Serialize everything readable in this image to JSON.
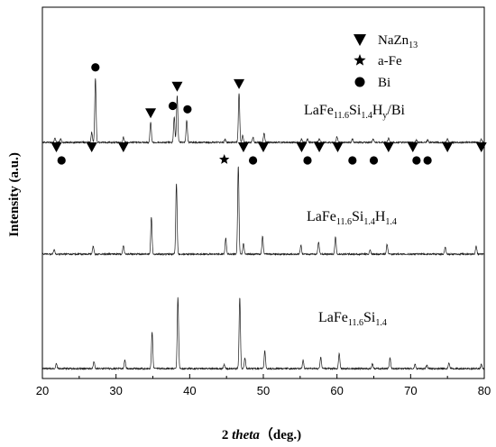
{
  "chart_data": {
    "type": "line",
    "xlabel_pre": "2 ",
    "xlabel_italic": "theta",
    "xlabel_post": "（deg.)",
    "ylabel": "Intensity (a.u.)",
    "xlim": [
      20,
      80
    ],
    "x_ticks": [
      20,
      30,
      40,
      50,
      60,
      70,
      80
    ],
    "grid": false,
    "legend": {
      "placement": "top-right",
      "entries": [
        {
          "marker": "triangle-down",
          "main": "NaZn",
          "sub": "13"
        },
        {
          "marker": "star",
          "main": "a-Fe",
          "sub": ""
        },
        {
          "marker": "circle",
          "main": "Bi",
          "sub": ""
        }
      ]
    },
    "series": [
      {
        "label_parts": [
          [
            "LaFe",
            ""
          ],
          [
            "11.6",
            "sub"
          ],
          [
            "Si",
            ""
          ],
          [
            "1.4",
            "sub"
          ]
        ],
        "peaks": [
          {
            "x": 21.9,
            "h": 0.07
          },
          {
            "x": 27.0,
            "h": 0.1
          },
          {
            "x": 31.2,
            "h": 0.12
          },
          {
            "x": 34.9,
            "h": 0.52
          },
          {
            "x": 38.4,
            "h": 1.0
          },
          {
            "x": 44.7,
            "h": 0.06
          },
          {
            "x": 46.8,
            "h": 1.0
          },
          {
            "x": 47.5,
            "h": 0.15
          },
          {
            "x": 50.2,
            "h": 0.25
          },
          {
            "x": 55.4,
            "h": 0.12
          },
          {
            "x": 57.8,
            "h": 0.16
          },
          {
            "x": 60.3,
            "h": 0.21
          },
          {
            "x": 64.8,
            "h": 0.07
          },
          {
            "x": 67.2,
            "h": 0.15
          },
          {
            "x": 70.6,
            "h": 0.06
          },
          {
            "x": 72.2,
            "h": 0.05
          },
          {
            "x": 75.2,
            "h": 0.08
          },
          {
            "x": 79.6,
            "h": 0.06
          }
        ]
      },
      {
        "label_parts": [
          [
            "LaFe",
            ""
          ],
          [
            "11.6",
            "sub"
          ],
          [
            "Si",
            ""
          ],
          [
            "1.4",
            "sub"
          ],
          [
            "H",
            ""
          ],
          [
            "1.4",
            "sub"
          ]
        ],
        "peaks": [
          {
            "x": 21.6,
            "h": 0.05
          },
          {
            "x": 26.9,
            "h": 0.09
          },
          {
            "x": 31.0,
            "h": 0.1
          },
          {
            "x": 34.8,
            "h": 0.42
          },
          {
            "x": 38.2,
            "h": 0.8
          },
          {
            "x": 44.9,
            "h": 0.18
          },
          {
            "x": 46.6,
            "h": 1.0
          },
          {
            "x": 47.3,
            "h": 0.12
          },
          {
            "x": 49.9,
            "h": 0.2
          },
          {
            "x": 55.1,
            "h": 0.1
          },
          {
            "x": 57.5,
            "h": 0.14
          },
          {
            "x": 59.8,
            "h": 0.2
          },
          {
            "x": 64.5,
            "h": 0.05
          },
          {
            "x": 66.8,
            "h": 0.11
          },
          {
            "x": 74.7,
            "h": 0.08
          },
          {
            "x": 78.9,
            "h": 0.09
          }
        ]
      },
      {
        "label_parts": [
          [
            "LaFe",
            ""
          ],
          [
            "11.6",
            "sub"
          ],
          [
            "Si",
            ""
          ],
          [
            "1.4",
            "sub"
          ],
          [
            "H",
            ""
          ],
          [
            "y",
            "sub"
          ],
          [
            "/Bi",
            ""
          ]
        ],
        "peaks": [
          {
            "x": 21.7,
            "h": 0.05
          },
          {
            "x": 22.5,
            "h": 0.04
          },
          {
            "x": 26.7,
            "h": 0.12
          },
          {
            "x": 27.2,
            "h": 0.75
          },
          {
            "x": 31.0,
            "h": 0.06
          },
          {
            "x": 34.7,
            "h": 0.24
          },
          {
            "x": 37.9,
            "h": 0.3
          },
          {
            "x": 38.3,
            "h": 0.55
          },
          {
            "x": 39.6,
            "h": 0.26
          },
          {
            "x": 44.8,
            "h": 0.04
          },
          {
            "x": 46.7,
            "h": 0.58
          },
          {
            "x": 47.2,
            "h": 0.08
          },
          {
            "x": 48.6,
            "h": 0.06
          },
          {
            "x": 50.1,
            "h": 0.11
          },
          {
            "x": 55.2,
            "h": 0.04
          },
          {
            "x": 56.0,
            "h": 0.04
          },
          {
            "x": 57.6,
            "h": 0.04
          },
          {
            "x": 60.0,
            "h": 0.07
          },
          {
            "x": 62.1,
            "h": 0.04
          },
          {
            "x": 64.9,
            "h": 0.04
          },
          {
            "x": 67.0,
            "h": 0.05
          },
          {
            "x": 70.8,
            "h": 0.03
          },
          {
            "x": 72.3,
            "h": 0.03
          },
          {
            "x": 75.0,
            "h": 0.04
          },
          {
            "x": 79.6,
            "h": 0.04
          }
        ],
        "markers": [
          {
            "type": "triangle-down",
            "x": 21.9
          },
          {
            "type": "triangle-down",
            "x": 26.7
          },
          {
            "type": "triangle-down",
            "x": 31.0
          },
          {
            "type": "triangle-down",
            "x": 34.7
          },
          {
            "type": "triangle-down",
            "x": 38.3
          },
          {
            "type": "triangle-down",
            "x": 46.7
          },
          {
            "type": "triangle-down",
            "x": 47.3
          },
          {
            "type": "triangle-down",
            "x": 50.0
          },
          {
            "type": "triangle-down",
            "x": 55.2
          },
          {
            "type": "triangle-down",
            "x": 57.6
          },
          {
            "type": "triangle-down",
            "x": 60.1
          },
          {
            "type": "triangle-down",
            "x": 67.0
          },
          {
            "type": "triangle-down",
            "x": 70.3
          },
          {
            "type": "triangle-down",
            "x": 75.0
          },
          {
            "type": "triangle-down",
            "x": 79.6
          },
          {
            "type": "circle",
            "x": 22.6
          },
          {
            "type": "circle",
            "x": 27.2
          },
          {
            "type": "circle",
            "x": 37.7
          },
          {
            "type": "circle",
            "x": 39.7
          },
          {
            "type": "circle",
            "x": 48.6
          },
          {
            "type": "circle",
            "x": 56.0
          },
          {
            "type": "circle",
            "x": 62.1
          },
          {
            "type": "circle",
            "x": 65.0
          },
          {
            "type": "circle",
            "x": 70.8
          },
          {
            "type": "circle",
            "x": 72.3
          },
          {
            "type": "star",
            "x": 44.7
          }
        ]
      }
    ]
  }
}
